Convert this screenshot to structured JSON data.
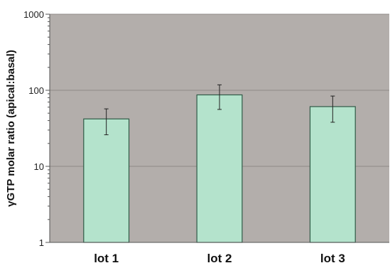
{
  "chart_data": {
    "type": "bar",
    "categories": [
      "lot 1",
      "lot 2",
      "lot 3"
    ],
    "values": [
      42,
      87,
      61
    ],
    "error_low": [
      26,
      56,
      38
    ],
    "error_high": [
      57,
      118,
      84
    ],
    "ylabel": "γGTP molar ratio (apical:basal)",
    "y_scale": "log",
    "ylim": [
      1,
      1000
    ],
    "y_ticks": [
      1,
      10,
      100,
      1000
    ],
    "y_tick_labels": [
      "1",
      "10",
      "100",
      "1000"
    ],
    "grid": true,
    "colors": {
      "plot_background": "#b3aeab",
      "bar_fill": "#b4e3cc",
      "bar_stroke": "#2f5a46",
      "gridline": "#8f8a87",
      "error_bar": "#222222"
    }
  }
}
